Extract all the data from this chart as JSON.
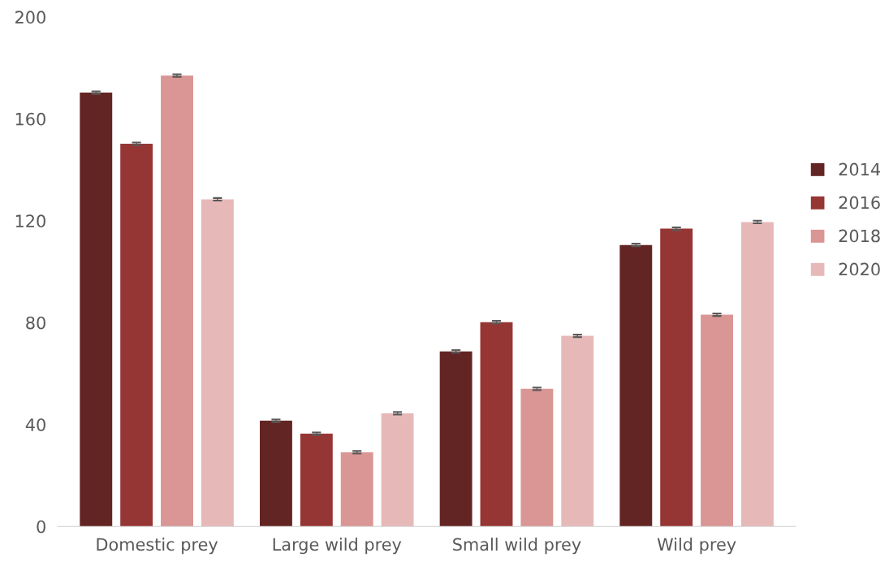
{
  "chart_data": {
    "type": "bar",
    "categories": [
      "Domestic prey",
      "Large wild prey",
      "Small wild prey",
      "Wild prey"
    ],
    "series": [
      {
        "name": "2014",
        "color": "#632523",
        "values": [
          170.3,
          41.5,
          68.7,
          110.5
        ],
        "errors": [
          0.5,
          0.5,
          0.5,
          0.5
        ]
      },
      {
        "name": "2016",
        "color": "#963634",
        "values": [
          150.2,
          36.4,
          80.2,
          116.9
        ],
        "errors": [
          0.5,
          0.5,
          0.5,
          0.5
        ]
      },
      {
        "name": "2018",
        "color": "#da9694",
        "values": [
          177.0,
          29.1,
          54.0,
          83.1
        ],
        "errors": [
          0.5,
          0.5,
          0.5,
          0.5
        ]
      },
      {
        "name": "2020",
        "color": "#e6b9b8",
        "values": [
          128.4,
          44.4,
          74.8,
          119.5
        ],
        "errors": [
          0.5,
          0.5,
          0.5,
          0.5
        ]
      }
    ],
    "ylim": [
      0,
      200
    ],
    "yticks": [
      0,
      40,
      80,
      120,
      160,
      200
    ],
    "grid": false,
    "legend": "right"
  }
}
